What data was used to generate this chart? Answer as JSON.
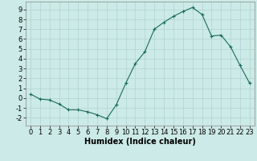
{
  "title": "",
  "xlabel": "Humidex (Indice chaleur)",
  "ylabel": "",
  "x": [
    0,
    1,
    2,
    3,
    4,
    5,
    6,
    7,
    8,
    9,
    10,
    11,
    12,
    13,
    14,
    15,
    16,
    17,
    18,
    19,
    20,
    21,
    22,
    23
  ],
  "y": [
    0.4,
    -0.1,
    -0.2,
    -0.6,
    -1.2,
    -1.2,
    -1.4,
    -1.7,
    -2.1,
    -0.7,
    1.5,
    3.5,
    4.7,
    7.0,
    7.7,
    8.3,
    8.8,
    9.2,
    8.5,
    6.3,
    6.4,
    5.2,
    3.3,
    1.5
  ],
  "xlim": [
    -0.5,
    23.5
  ],
  "ylim": [
    -2.8,
    9.8
  ],
  "yticks": [
    -2,
    -1,
    0,
    1,
    2,
    3,
    4,
    5,
    6,
    7,
    8,
    9
  ],
  "xticks": [
    0,
    1,
    2,
    3,
    4,
    5,
    6,
    7,
    8,
    9,
    10,
    11,
    12,
    13,
    14,
    15,
    16,
    17,
    18,
    19,
    20,
    21,
    22,
    23
  ],
  "line_color": "#1a6b5a",
  "marker": "+",
  "bg_color": "#cceae7",
  "grid_color": "#b0d4d0",
  "tick_fontsize": 6,
  "xlabel_fontsize": 7,
  "figsize": [
    3.2,
    2.0
  ],
  "dpi": 100
}
